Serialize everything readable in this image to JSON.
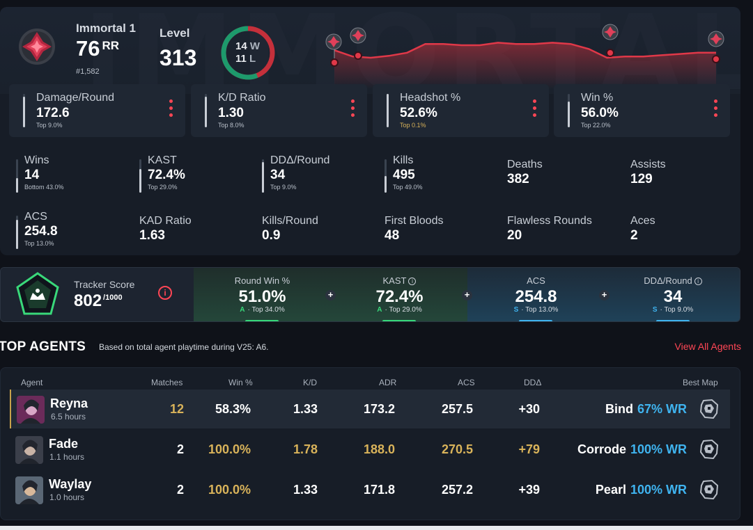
{
  "overview": {
    "rank": {
      "name": "Immortal 1",
      "rr": "76",
      "rr_unit": "RR",
      "position": "#1,582"
    },
    "level": {
      "label": "Level",
      "value": "313"
    },
    "record": {
      "wins": "14",
      "win_suffix": "W",
      "losses": "11",
      "loss_suffix": "L",
      "win_fraction": 0.56
    },
    "rr_history": [
      0.62,
      0.52,
      0.5,
      0.53,
      0.58,
      0.72,
      0.72,
      0.7,
      0.7,
      0.74,
      0.72,
      0.72,
      0.74,
      0.72,
      0.64,
      0.5,
      0.52,
      0.52,
      0.54,
      0.56,
      0.58,
      0.58
    ],
    "stat_cards": [
      {
        "label": "Damage/Round",
        "value": "172.6",
        "top": "Top 9.0%",
        "fill": 0.91,
        "gold": false
      },
      {
        "label": "K/D Ratio",
        "value": "1.30",
        "top": "Top 8.0%",
        "fill": 0.92,
        "gold": false
      },
      {
        "label": "Headshot %",
        "value": "52.6%",
        "top": "Top 0.1%",
        "fill": 0.99,
        "gold": true
      },
      {
        "label": "Win %",
        "value": "56.0%",
        "top": "Top 22.0%",
        "fill": 0.78,
        "gold": false
      }
    ],
    "stats_row1": [
      {
        "label": "Wins",
        "value": "14",
        "top": "Bottom 43.0%",
        "fill": 0.43,
        "has_bar": true
      },
      {
        "label": "KAST",
        "value": "72.4%",
        "top": "Top 29.0%",
        "fill": 0.71,
        "has_bar": true
      },
      {
        "label": "DDΔ/Round",
        "value": "34",
        "top": "Top 9.0%",
        "fill": 0.91,
        "has_bar": true
      },
      {
        "label": "Kills",
        "value": "495",
        "top": "Top 49.0%",
        "fill": 0.51,
        "has_bar": true
      },
      {
        "label": "Deaths",
        "value": "382",
        "top": "",
        "fill": 0,
        "has_bar": false
      },
      {
        "label": "Assists",
        "value": "129",
        "top": "",
        "fill": 0,
        "has_bar": false
      }
    ],
    "stats_row2": [
      {
        "label": "ACS",
        "value": "254.8",
        "top": "Top 13.0%",
        "fill": 0.87,
        "has_bar": true
      },
      {
        "label": "KAD Ratio",
        "value": "1.63",
        "top": "",
        "fill": 0,
        "has_bar": false
      },
      {
        "label": "Kills/Round",
        "value": "0.9",
        "top": "",
        "fill": 0,
        "has_bar": false
      },
      {
        "label": "First Bloods",
        "value": "48",
        "top": "",
        "fill": 0,
        "has_bar": false
      },
      {
        "label": "Flawless Rounds",
        "value": "20",
        "top": "",
        "fill": 0,
        "has_bar": false
      },
      {
        "label": "Aces",
        "value": "2",
        "top": "",
        "fill": 0,
        "has_bar": false
      }
    ]
  },
  "tracker": {
    "label": "Tracker Score",
    "score": "802",
    "max": "/1000",
    "info": "i",
    "columns": [
      {
        "label": "Round Win %",
        "value": "51.0%",
        "grade": "A",
        "top": "Top 34.0%",
        "info": false,
        "tone": "g"
      },
      {
        "label": "KAST",
        "value": "72.4%",
        "grade": "A",
        "top": "Top 29.0%",
        "info": true,
        "tone": "g"
      },
      {
        "label": "ACS",
        "value": "254.8",
        "grade": "S",
        "top": "Top 13.0%",
        "info": false,
        "tone": "b"
      },
      {
        "label": "DDΔ/Round",
        "value": "34",
        "grade": "S",
        "top": "Top 9.0%",
        "info": true,
        "tone": "b"
      }
    ]
  },
  "agents": {
    "title": "TOP AGENTS",
    "subtitle": "Based on total agent playtime during V25: A6.",
    "view_all": "View All Agents",
    "headers": {
      "agent": "Agent",
      "matches": "Matches",
      "win": "Win %",
      "kd": "K/D",
      "adr": "ADR",
      "acs": "ACS",
      "dda": "DDΔ",
      "best_map": "Best Map"
    },
    "rows": [
      {
        "name": "Reyna",
        "hours": "6.5 hours",
        "matches": "12",
        "win": "58.3%",
        "kd": "1.33",
        "adr": "173.2",
        "acs": "257.5",
        "dda": "+30",
        "map": "Bind",
        "map_wr": "67% WR",
        "gold": [
          "matches"
        ]
      },
      {
        "name": "Fade",
        "hours": "1.1 hours",
        "matches": "2",
        "win": "100.0%",
        "kd": "1.78",
        "adr": "188.0",
        "acs": "270.5",
        "dda": "+79",
        "map": "Corrode",
        "map_wr": "100% WR",
        "gold": [
          "win",
          "kd",
          "adr",
          "acs",
          "dda"
        ]
      },
      {
        "name": "Waylay",
        "hours": "1.0 hours",
        "matches": "2",
        "win": "100.0%",
        "kd": "1.33",
        "adr": "171.8",
        "acs": "257.2",
        "dda": "+39",
        "map": "Pearl",
        "map_wr": "100% WR",
        "gold": [
          "win"
        ]
      }
    ]
  },
  "colors": {
    "accent": "#ff4655",
    "gold": "#d9b35a",
    "blue": "#3fb4f0",
    "green": "#37d87a",
    "win_ring": "#1d9a6c",
    "loss_ring": "#c5303b"
  }
}
